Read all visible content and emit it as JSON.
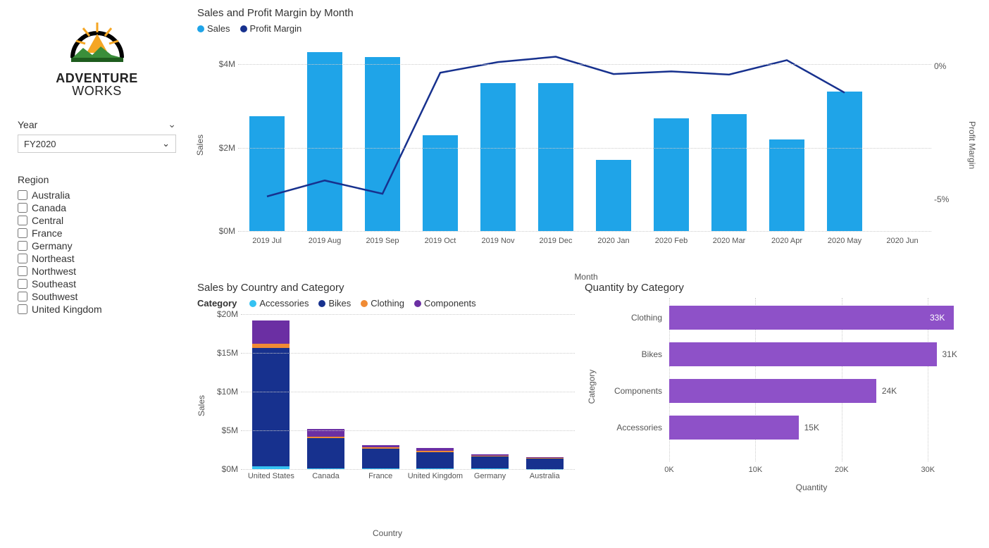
{
  "logo": {
    "name": "ADVENTURE",
    "name2": "WORKS"
  },
  "filters": {
    "year": {
      "title": "Year",
      "selected": "FY2020"
    },
    "region": {
      "title": "Region",
      "items": [
        "Australia",
        "Canada",
        "Central",
        "France",
        "Germany",
        "Northeast",
        "Northwest",
        "Southeast",
        "Southwest",
        "United Kingdom"
      ]
    }
  },
  "combo": {
    "title": "Sales and Profit Margin by Month",
    "legend": {
      "sales": "Sales",
      "margin": "Profit Margin"
    },
    "colors": {
      "bar": "#1fa4e8",
      "line": "#17318e"
    },
    "y_left": {
      "title": "Sales",
      "ticks": [
        "$0M",
        "$2M",
        "$4M"
      ],
      "tick_vals": [
        0,
        2,
        4
      ],
      "max": 4.6
    },
    "y_right": {
      "title": "Profit Margin",
      "ticks": [
        "-5%",
        "0%"
      ],
      "tick_vals": [
        -5,
        0
      ],
      "min": -6.2,
      "max": 1.0
    },
    "x_title": "Month",
    "months": [
      "2019 Jul",
      "2019 Aug",
      "2019 Sep",
      "2019 Oct",
      "2019 Nov",
      "2019 Dec",
      "2020 Jan",
      "2020 Feb",
      "2020 Mar",
      "2020 Apr",
      "2020 May",
      "2020 Jun"
    ],
    "sales": [
      2.75,
      4.3,
      4.18,
      2.3,
      3.55,
      3.55,
      1.7,
      2.7,
      2.8,
      2.2,
      3.35,
      0
    ],
    "margin": [
      -4.9,
      -4.3,
      -4.8,
      -0.25,
      0.15,
      0.35,
      -0.3,
      -0.2,
      -0.32,
      0.22,
      -1.0,
      null
    ]
  },
  "stacked": {
    "title": "Sales by Country and Category",
    "legend_title": "Category",
    "categories": [
      "Accessories",
      "Bikes",
      "Clothing",
      "Components"
    ],
    "colors": {
      "Accessories": "#35c2f2",
      "Bikes": "#17318e",
      "Clothing": "#f08b34",
      "Components": "#6b2fa3"
    },
    "y": {
      "title": "Sales",
      "ticks": [
        "$0M",
        "$5M",
        "$10M",
        "$15M",
        "$20M"
      ],
      "tick_vals": [
        0,
        5,
        10,
        15,
        20
      ],
      "max": 20
    },
    "x_title": "Country",
    "countries": [
      "United States",
      "Canada",
      "France",
      "United Kingdom",
      "Germany",
      "Australia"
    ],
    "data": {
      "United States": {
        "Accessories": 0.35,
        "Bikes": 15.3,
        "Clothing": 0.55,
        "Components": 3.0
      },
      "Canada": {
        "Accessories": 0.1,
        "Bikes": 3.9,
        "Clothing": 0.2,
        "Components": 1.0
      },
      "France": {
        "Accessories": 0.07,
        "Bikes": 2.6,
        "Clothing": 0.13,
        "Components": 0.3
      },
      "United Kingdom": {
        "Accessories": 0.07,
        "Bikes": 2.15,
        "Clothing": 0.13,
        "Components": 0.35
      },
      "Germany": {
        "Accessories": 0.05,
        "Bikes": 1.55,
        "Clothing": 0.1,
        "Components": 0.2
      },
      "Australia": {
        "Accessories": 0.04,
        "Bikes": 1.3,
        "Clothing": 0.08,
        "Components": 0.1
      }
    }
  },
  "hbar": {
    "title": "Quantity by Category",
    "color": "#8e51c8",
    "y_title": "Category",
    "x_title": "Quantity",
    "x_ticks": [
      "0K",
      "10K",
      "20K",
      "30K"
    ],
    "x_tick_vals": [
      0,
      10,
      20,
      30
    ],
    "x_max": 33,
    "rows": [
      {
        "cat": "Clothing",
        "val": 33,
        "label": "33K",
        "inside": true
      },
      {
        "cat": "Bikes",
        "val": 31,
        "label": "31K",
        "inside": false
      },
      {
        "cat": "Components",
        "val": 24,
        "label": "24K",
        "inside": false
      },
      {
        "cat": "Accessories",
        "val": 15,
        "label": "15K",
        "inside": false
      }
    ]
  }
}
